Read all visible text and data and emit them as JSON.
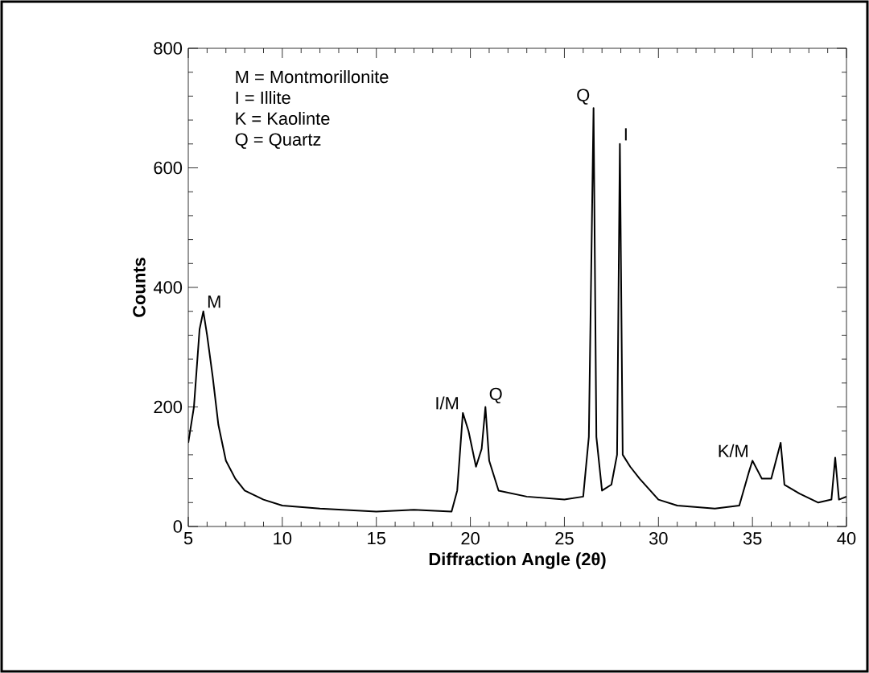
{
  "chart_data": {
    "type": "line",
    "xlabel": "Diffraction Angle (2θ)",
    "ylabel": "Counts",
    "xlim": [
      5,
      40
    ],
    "ylim": [
      0,
      800
    ],
    "xticks": [
      5,
      10,
      15,
      20,
      25,
      30,
      35,
      40
    ],
    "yticks": [
      0,
      200,
      400,
      600,
      800
    ],
    "grid": false,
    "marker": "none",
    "line_style": "solid",
    "series": [
      {
        "color": "#000000",
        "x": [
          5.0,
          5.3,
          5.6,
          5.8,
          6.0,
          6.3,
          6.6,
          7.0,
          7.5,
          8,
          9,
          10,
          12,
          15,
          17,
          19,
          19.3,
          19.6,
          19.9,
          20.3,
          20.6,
          20.8,
          21.0,
          21.5,
          23,
          25,
          26.0,
          26.3,
          26.55,
          26.7,
          27.0,
          27.5,
          27.8,
          27.95,
          28.1,
          28.5,
          29,
          30,
          31,
          33,
          34.3,
          34.8,
          35.0,
          35.5,
          36,
          36.5,
          36.7,
          37.5,
          38.5,
          39.2,
          39.4,
          39.6,
          40
        ],
        "values": [
          140,
          200,
          330,
          360,
          320,
          250,
          170,
          110,
          80,
          60,
          45,
          35,
          30,
          25,
          28,
          25,
          60,
          190,
          160,
          100,
          130,
          200,
          110,
          60,
          50,
          45,
          50,
          150,
          700,
          150,
          60,
          70,
          120,
          640,
          120,
          100,
          80,
          45,
          35,
          30,
          35,
          90,
          110,
          80,
          80,
          140,
          70,
          55,
          40,
          45,
          115,
          45,
          50
        ]
      }
    ],
    "annotations": [
      "M = Montmorillonite",
      "I = Illite",
      "K = Kaolinte",
      "Q = Quartz",
      {
        "text": "M",
        "x": 5.8,
        "y": 360
      },
      {
        "text": "I/M",
        "x": 19.6,
        "y": 190
      },
      {
        "text": "Q",
        "x": 20.8,
        "y": 200
      },
      {
        "text": "Q",
        "x": 26.55,
        "y": 700
      },
      {
        "text": "I",
        "x": 27.95,
        "y": 640
      },
      {
        "text": "K/M",
        "x": 35.0,
        "y": 110
      }
    ]
  }
}
